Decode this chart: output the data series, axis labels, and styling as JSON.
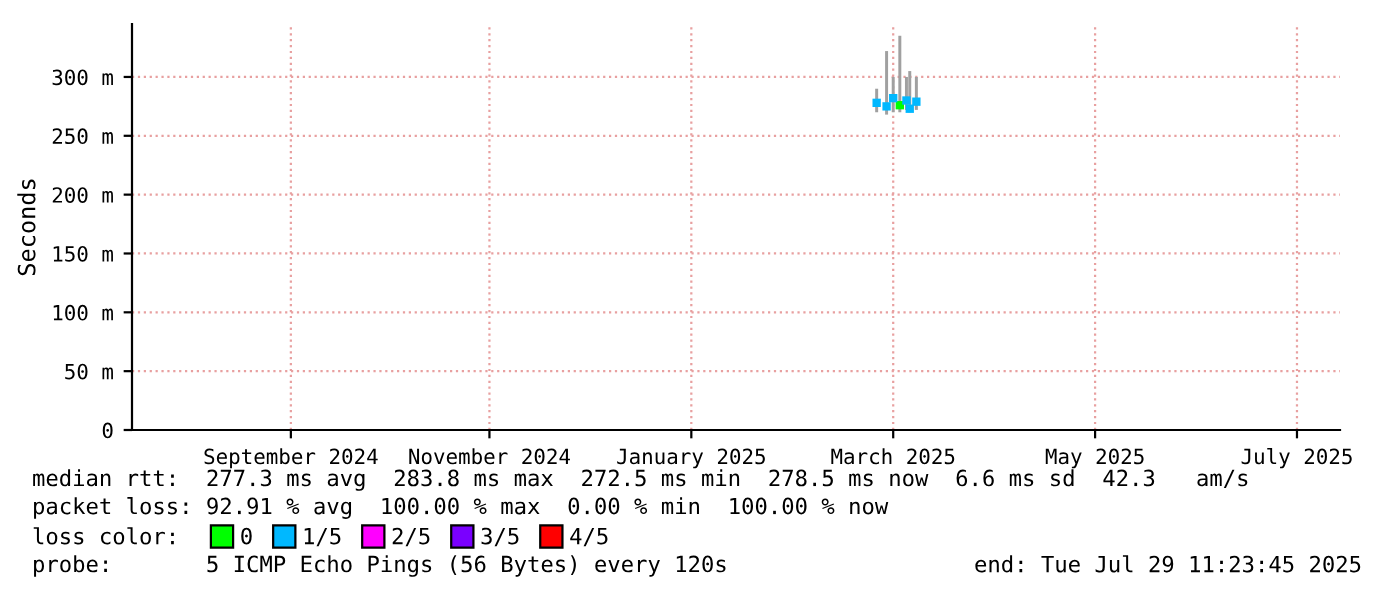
{
  "chart_data": {
    "type": "scatter",
    "ylabel": "Seconds",
    "x": [
      "2025-03-11",
      "2025-03-14",
      "2025-03-16",
      "2025-03-18",
      "2025-03-20",
      "2025-03-21",
      "2025-03-23"
    ],
    "xlim": [
      "2024-07-29",
      "2025-07-29"
    ],
    "xticks": [
      {
        "value": "2024-09-15",
        "label": "September 2024"
      },
      {
        "value": "2024-11-14",
        "label": "November 2024"
      },
      {
        "value": "2025-01-14",
        "label": "January 2025"
      },
      {
        "value": "2025-03-16",
        "label": "March 2025"
      },
      {
        "value": "2025-05-16",
        "label": "May 2025"
      },
      {
        "value": "2025-07-16",
        "label": "July 2025"
      }
    ],
    "ylim": [
      0,
      345
    ],
    "yticks": [
      0,
      {
        "value": 50,
        "label": "50 m"
      },
      {
        "value": 100,
        "label": "100 m"
      },
      {
        "value": 150,
        "label": "150 m"
      },
      {
        "value": 200,
        "label": "200 m"
      },
      {
        "value": 250,
        "label": "250 m"
      },
      {
        "value": 300,
        "label": "300 m"
      }
    ],
    "grid": true,
    "marker": "square",
    "legend": "bottom left",
    "legend_title": "loss color:",
    "series": [
      {
        "type": "bar",
        "color": "#a0a0a0",
        "base": [
          270,
          268,
          270,
          270,
          272,
          270,
          272
        ],
        "values": [
          20,
          54,
          30,
          65,
          28,
          35,
          28
        ]
      },
      {
        "name": "0",
        "color": "#00ff00",
        "values": [
          null,
          null,
          null,
          276,
          null,
          null,
          null
        ]
      },
      {
        "name": "1/5",
        "color": "#00b8ff",
        "values": [
          278,
          275,
          282,
          null,
          280,
          273,
          279
        ]
      },
      {
        "name": "2/5",
        "color": "#ff00ff",
        "values": [
          null,
          null,
          null,
          null,
          null,
          null,
          null
        ]
      },
      {
        "name": "3/5",
        "color": "#7a00ff",
        "values": [
          null,
          null,
          null,
          null,
          null,
          null,
          null
        ]
      },
      {
        "name": "4/5",
        "color": "#ff0000",
        "values": [
          null,
          null,
          null,
          null,
          null,
          null,
          null
        ]
      }
    ],
    "annotations": [
      "median rtt:  277.3 ms avg  283.8 ms max  272.5 ms min  278.5 ms now  6.6 ms sd  42.3   am/s",
      "packet loss: 92.91 % avg  100.00 % max  0.00 % min  100.00 % now",
      "probe:       5 ICMP Echo Pings (56 Bytes) every 120s",
      "end: Tue Jul 29 11:23:45 2025"
    ]
  }
}
